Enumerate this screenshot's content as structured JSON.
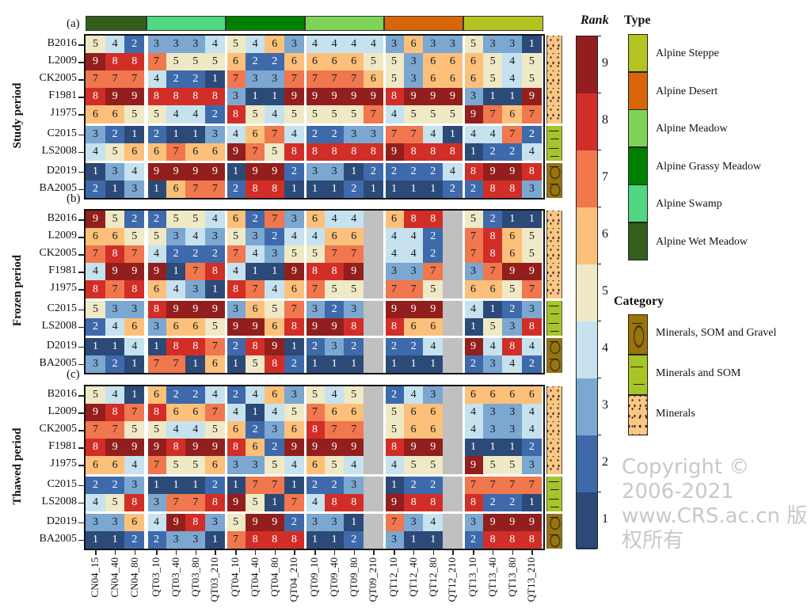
{
  "chart_data": {
    "type": "heatmap",
    "columns": [
      "CN04_15",
      "CN04_40",
      "CN04_80",
      "QT03_10",
      "QT03_40",
      "QT03_80",
      "QT03_210",
      "QT04_10",
      "QT04_40",
      "QT04_80",
      "QT04_210",
      "QT09_10",
      "QT09_40",
      "QT09_80",
      "QT09_210",
      "QT12_10",
      "QT12_40",
      "QT12_80",
      "QT12_210",
      "QT13_10",
      "QT13_40",
      "QT13_80",
      "QT13_210"
    ],
    "column_groups": [
      {
        "site": "CN04",
        "type": "Alpine Wet Meadow",
        "count": 3
      },
      {
        "site": "QT03",
        "type": "Alpine Swamp",
        "count": 4
      },
      {
        "site": "QT04",
        "type": "Alpine Grassy Meadow",
        "count": 4
      },
      {
        "site": "QT09",
        "type": "Alpine Meadow",
        "count": 4
      },
      {
        "site": "QT12",
        "type": "Alpine Desert",
        "count": 4
      },
      {
        "site": "QT13",
        "type": "Alpine Steppe",
        "count": 4
      }
    ],
    "rows": [
      "B2016",
      "L2009",
      "CK2005",
      "F1981",
      "J1975",
      "C2015",
      "LS2008",
      "D2019",
      "BA2005"
    ],
    "row_categories": [
      "Minerals",
      "Minerals",
      "Minerals",
      "Minerals",
      "Minerals",
      "Minerals and SOM",
      "Minerals and SOM",
      "Minerals, SOM and Gravel",
      "Minerals, SOM and Gravel"
    ],
    "panels": [
      {
        "label": "(a)",
        "title": "Study period",
        "values": [
          [
            5,
            4,
            2,
            3,
            3,
            3,
            4,
            5,
            4,
            6,
            3,
            4,
            4,
            4,
            4,
            3,
            6,
            3,
            3,
            5,
            3,
            3,
            1
          ],
          [
            9,
            8,
            8,
            7,
            5,
            5,
            5,
            6,
            2,
            2,
            6,
            6,
            6,
            6,
            5,
            5,
            3,
            6,
            6,
            6,
            5,
            4,
            5
          ],
          [
            7,
            7,
            7,
            4,
            2,
            2,
            1,
            7,
            3,
            3,
            7,
            7,
            7,
            7,
            6,
            5,
            3,
            6,
            6,
            6,
            5,
            4,
            5
          ],
          [
            8,
            9,
            9,
            8,
            8,
            8,
            8,
            3,
            1,
            1,
            9,
            9,
            9,
            9,
            9,
            8,
            9,
            9,
            9,
            3,
            1,
            1,
            9
          ],
          [
            6,
            6,
            5,
            5,
            4,
            4,
            2,
            8,
            5,
            4,
            5,
            5,
            5,
            5,
            7,
            4,
            5,
            5,
            5,
            9,
            7,
            6,
            7
          ],
          [
            3,
            2,
            1,
            2,
            1,
            1,
            3,
            4,
            6,
            7,
            4,
            2,
            2,
            3,
            3,
            7,
            7,
            4,
            1,
            4,
            4,
            7,
            2
          ],
          [
            4,
            5,
            6,
            6,
            7,
            6,
            6,
            9,
            7,
            5,
            8,
            8,
            8,
            8,
            8,
            9,
            8,
            8,
            8,
            1,
            2,
            2,
            4
          ],
          [
            1,
            3,
            4,
            9,
            9,
            9,
            9,
            1,
            9,
            9,
            2,
            3,
            3,
            1,
            2,
            2,
            2,
            2,
            4,
            8,
            9,
            9,
            8
          ],
          [
            2,
            1,
            3,
            1,
            6,
            7,
            7,
            2,
            8,
            8,
            1,
            1,
            1,
            2,
            1,
            1,
            1,
            1,
            2,
            2,
            8,
            8,
            3
          ]
        ]
      },
      {
        "label": "(b)",
        "title": "Frozen period",
        "values": [
          [
            9,
            5,
            2,
            2,
            5,
            5,
            4,
            6,
            2,
            7,
            3,
            6,
            4,
            4,
            null,
            6,
            8,
            8,
            null,
            5,
            2,
            1,
            1
          ],
          [
            6,
            6,
            5,
            5,
            3,
            4,
            3,
            5,
            3,
            2,
            4,
            4,
            6,
            6,
            null,
            4,
            4,
            2,
            null,
            7,
            8,
            6,
            5
          ],
          [
            7,
            8,
            7,
            4,
            2,
            2,
            2,
            7,
            4,
            3,
            5,
            5,
            7,
            7,
            null,
            4,
            4,
            2,
            null,
            7,
            8,
            6,
            5
          ],
          [
            4,
            9,
            9,
            9,
            1,
            7,
            8,
            4,
            1,
            1,
            9,
            8,
            8,
            9,
            null,
            3,
            3,
            7,
            null,
            3,
            7,
            9,
            9
          ],
          [
            8,
            7,
            8,
            6,
            4,
            3,
            1,
            8,
            7,
            4,
            6,
            7,
            5,
            5,
            null,
            7,
            7,
            5,
            null,
            6,
            6,
            5,
            7
          ],
          [
            5,
            3,
            3,
            8,
            9,
            9,
            9,
            3,
            6,
            5,
            7,
            3,
            2,
            3,
            null,
            9,
            9,
            9,
            null,
            4,
            1,
            2,
            3
          ],
          [
            2,
            4,
            6,
            3,
            6,
            6,
            5,
            9,
            9,
            6,
            8,
            9,
            9,
            8,
            null,
            8,
            6,
            6,
            null,
            1,
            5,
            3,
            8
          ],
          [
            1,
            1,
            4,
            1,
            8,
            8,
            7,
            2,
            8,
            9,
            1,
            2,
            3,
            2,
            null,
            2,
            2,
            4,
            null,
            9,
            4,
            8,
            4
          ],
          [
            3,
            2,
            1,
            7,
            7,
            1,
            6,
            1,
            5,
            8,
            2,
            1,
            1,
            1,
            null,
            1,
            1,
            1,
            null,
            2,
            3,
            4,
            2
          ]
        ]
      },
      {
        "label": "(c)",
        "title": "Thawed period",
        "values": [
          [
            5,
            4,
            1,
            6,
            2,
            2,
            4,
            2,
            4,
            6,
            3,
            5,
            4,
            5,
            null,
            2,
            4,
            3,
            null,
            6,
            6,
            6,
            6
          ],
          [
            9,
            8,
            7,
            8,
            6,
            6,
            7,
            4,
            1,
            4,
            5,
            7,
            6,
            6,
            null,
            5,
            6,
            6,
            null,
            4,
            3,
            3,
            4
          ],
          [
            7,
            7,
            5,
            5,
            4,
            4,
            5,
            6,
            2,
            3,
            6,
            8,
            7,
            7,
            null,
            5,
            6,
            6,
            null,
            4,
            3,
            3,
            4
          ],
          [
            8,
            9,
            9,
            9,
            8,
            9,
            9,
            8,
            6,
            2,
            9,
            9,
            9,
            9,
            null,
            8,
            9,
            9,
            null,
            1,
            1,
            1,
            2
          ],
          [
            6,
            6,
            4,
            7,
            5,
            5,
            6,
            3,
            3,
            5,
            4,
            6,
            5,
            4,
            null,
            4,
            5,
            5,
            null,
            9,
            5,
            5,
            3
          ],
          [
            2,
            2,
            3,
            1,
            1,
            1,
            2,
            1,
            7,
            7,
            1,
            2,
            2,
            3,
            null,
            1,
            2,
            2,
            null,
            7,
            7,
            7,
            7
          ],
          [
            4,
            5,
            8,
            3,
            7,
            7,
            8,
            9,
            5,
            1,
            7,
            4,
            8,
            8,
            null,
            9,
            8,
            8,
            null,
            8,
            2,
            2,
            1
          ],
          [
            3,
            3,
            6,
            4,
            9,
            8,
            3,
            5,
            9,
            9,
            2,
            3,
            3,
            1,
            null,
            7,
            3,
            4,
            null,
            3,
            9,
            9,
            9
          ],
          [
            1,
            1,
            2,
            2,
            3,
            3,
            1,
            7,
            8,
            8,
            8,
            1,
            1,
            2,
            null,
            3,
            1,
            1,
            null,
            2,
            8,
            8,
            8
          ]
        ]
      }
    ],
    "colorbar": {
      "title": "Rank",
      "ticks": [
        "1",
        "2",
        "3",
        "4",
        "5",
        "6",
        "7",
        "8",
        "9"
      ]
    },
    "rank_colors": [
      "#2c4a78",
      "#3e6aab",
      "#7ba7d1",
      "#c6e2ee",
      "#efe9c6",
      "#fcc07b",
      "#f0774e",
      "#d12e27",
      "#921f1d"
    ],
    "missing_color": "#c0c0c0"
  },
  "legend_type": {
    "title": "Type",
    "items": [
      {
        "label": "Alpine Steppe",
        "color": "#b3c422"
      },
      {
        "label": "Alpine Desert",
        "color": "#d86508"
      },
      {
        "label": "Alpine Meadow",
        "color": "#7dd358"
      },
      {
        "label": "Alpine Grassy Meadow",
        "color": "#008000"
      },
      {
        "label": "Alpine Swamp",
        "color": "#51d682"
      },
      {
        "label": "Alpine Wet Meadow",
        "color": "#345e1c"
      }
    ]
  },
  "legend_category": {
    "title": "Category",
    "items": [
      {
        "label": "Minerals, SOM and Gravel",
        "pattern": "gravel"
      },
      {
        "label": "Minerals and SOM",
        "pattern": "som"
      },
      {
        "label": "Minerals",
        "pattern": "dots"
      }
    ]
  },
  "watermark": "Copyright © 2006-2021 www.CRS.ac.cn 版权所有"
}
